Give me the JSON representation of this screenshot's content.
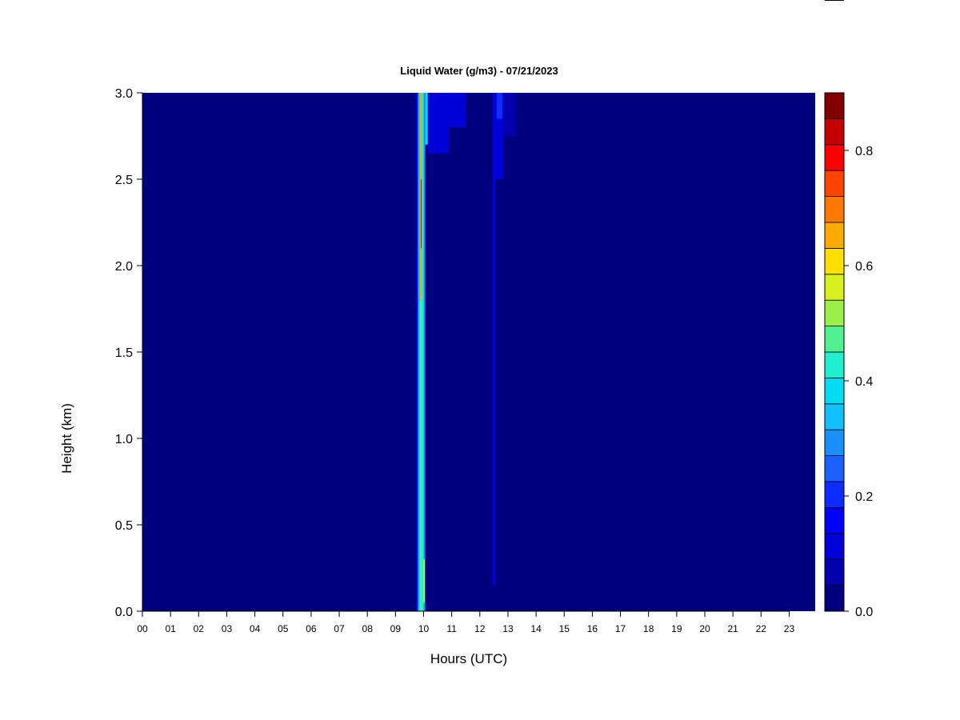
{
  "chart_data": {
    "type": "heatmap",
    "title": "Liquid Water (g/m3) - 07/21/2023",
    "xlabel": "Hours (UTC)",
    "ylabel": "Height (km)",
    "xlim": [
      0,
      24
    ],
    "ylim": [
      0,
      3.0
    ],
    "x_ticks": [
      "00",
      "01",
      "02",
      "03",
      "04",
      "05",
      "06",
      "07",
      "08",
      "09",
      "10",
      "11",
      "12",
      "13",
      "14",
      "15",
      "16",
      "17",
      "18",
      "19",
      "20",
      "21",
      "22",
      "23"
    ],
    "y_ticks": [
      "0.0",
      "0.5",
      "1.0",
      "1.5",
      "2.0",
      "2.5",
      "3.0"
    ],
    "background_value": 0.0,
    "colorbar": {
      "range": [
        0,
        0.9
      ],
      "step": 0.05,
      "tick_labels": [
        "0.0",
        "0.2",
        "0.4",
        "0.6",
        "0.8"
      ],
      "colors": [
        "#00007f",
        "#0000ac",
        "#0000d9",
        "#0000ff",
        "#0d2dff",
        "#1a5fff",
        "#1a8fff",
        "#10c0ff",
        "#00dcf0",
        "#20f0d0",
        "#50f090",
        "#9cf04a",
        "#d8f01c",
        "#ffe000",
        "#ffaa00",
        "#ff7800",
        "#ff4400",
        "#ff0000",
        "#c40000",
        "#800000"
      ]
    },
    "features": [
      {
        "hour_start": 9.74,
        "hour_end": 9.8,
        "height_start": 0.0,
        "height_end": 3.0,
        "value": 0.15
      },
      {
        "hour_start": 9.8,
        "hour_end": 9.86,
        "height_start": 0.0,
        "height_end": 3.0,
        "value": 0.35
      },
      {
        "hour_start": 9.86,
        "hour_end": 9.93,
        "height_start": 0.0,
        "height_end": 1.8,
        "value": 0.52
      },
      {
        "hour_start": 9.86,
        "hour_end": 9.93,
        "height_start": 1.8,
        "height_end": 3.0,
        "value": 0.7
      },
      {
        "hour_start": 9.9,
        "hour_end": 9.94,
        "height_start": 2.1,
        "height_end": 2.5,
        "value": 0.85
      },
      {
        "hour_start": 9.93,
        "hour_end": 10.0,
        "height_start": 0.0,
        "height_end": 3.0,
        "value": 0.45
      },
      {
        "hour_start": 10.0,
        "hour_end": 10.06,
        "height_start": 0.0,
        "height_end": 3.0,
        "value": 0.32
      },
      {
        "hour_start": 10.0,
        "hour_end": 10.04,
        "height_start": 0.05,
        "height_end": 0.3,
        "value": 0.6
      },
      {
        "hour_start": 10.06,
        "hour_end": 10.15,
        "height_start": 2.7,
        "height_end": 3.0,
        "value": 0.4
      },
      {
        "hour_start": 10.15,
        "hour_end": 10.9,
        "height_start": 2.65,
        "height_end": 3.0,
        "value": 0.12
      },
      {
        "hour_start": 10.9,
        "hour_end": 11.5,
        "height_start": 2.8,
        "height_end": 3.0,
        "value": 0.1
      },
      {
        "hour_start": 12.45,
        "hour_end": 12.55,
        "height_start": 0.15,
        "height_end": 3.0,
        "value": 0.1
      },
      {
        "hour_start": 12.55,
        "hour_end": 12.85,
        "height_start": 2.5,
        "height_end": 3.0,
        "value": 0.12
      },
      {
        "hour_start": 12.6,
        "hour_end": 12.8,
        "height_start": 2.85,
        "height_end": 3.0,
        "value": 0.2
      },
      {
        "hour_start": 12.85,
        "hour_end": 13.3,
        "height_start": 2.75,
        "height_end": 3.0,
        "value": 0.08
      }
    ]
  }
}
